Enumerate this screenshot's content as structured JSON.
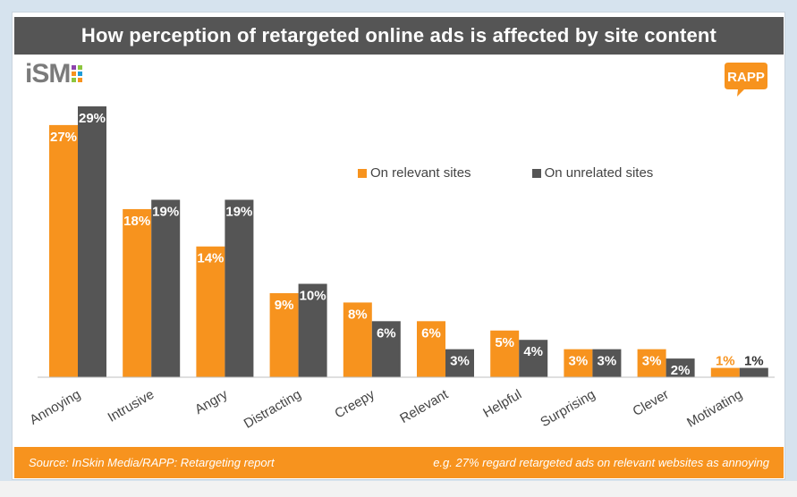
{
  "title": "How perception of retargeted online ads is affected by site content",
  "logos": {
    "left": "iSM",
    "right": "RAPP"
  },
  "colors": {
    "relevant": "#f7931e",
    "unrelated": "#555555",
    "title_bg": "#555555",
    "footer_bg": "#f7931e",
    "logo_green": "#8dc63f",
    "logo_purple": "#8e44ad",
    "logo_orange": "#f7931e",
    "logo_blue": "#1f9cd8"
  },
  "footer": {
    "source": "Source: InSkin Media/RAPP: Retargeting report",
    "note": "e.g. 27% regard retargeted ads on relevant websites as annoying"
  },
  "chart_data": {
    "type": "bar",
    "categories": [
      "Annoying",
      "Intrusive",
      "Angry",
      "Distracting",
      "Creepy",
      "Relevant",
      "Helpful",
      "Surprising",
      "Clever",
      "Motivating"
    ],
    "series": [
      {
        "name": "On relevant sites",
        "values": [
          27,
          18,
          14,
          9,
          8,
          6,
          5,
          3,
          3,
          1
        ],
        "labels": [
          "27%",
          "18%",
          "14%",
          "9%",
          "8%",
          "6%",
          "5%",
          "3%",
          "3%",
          "1%"
        ]
      },
      {
        "name": "On unrelated sites",
        "values": [
          29,
          19,
          19,
          10,
          6,
          3,
          4,
          3,
          2,
          1
        ],
        "labels": [
          "29%",
          "19%",
          "19%",
          "10%",
          "6%",
          "3%",
          "4%",
          "3%",
          "2%",
          "1%"
        ]
      }
    ],
    "ylim": [
      0,
      29
    ],
    "grid": false,
    "legend": "top-right"
  }
}
